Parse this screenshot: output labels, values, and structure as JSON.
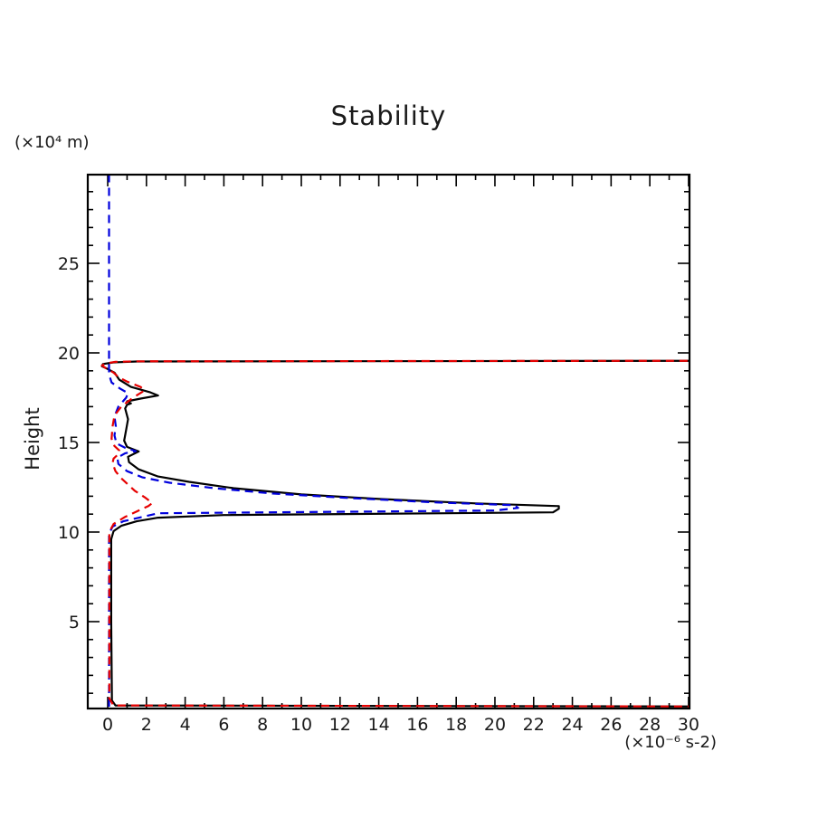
{
  "title": "Stability",
  "axes": {
    "y_unit_label": "(×10⁴ m)",
    "y_title": "Height",
    "x_unit_label": "(×10⁻⁶ s-2)"
  },
  "chart_data": {
    "type": "line",
    "title": "Stability",
    "xlabel": "(×10⁻⁶ s-2)",
    "ylabel": "Height",
    "ylabel_unit": "(×10⁴ m)",
    "orientation": "vertical-profile: x = stability value, y = height",
    "grid": false,
    "legend": "none",
    "x_range": [
      -1.03,
      30.05
    ],
    "y_range": [
      0.15,
      29.95
    ],
    "x_major_ticks": [
      0,
      2,
      4,
      6,
      8,
      10,
      12,
      14,
      16,
      18,
      20,
      22,
      24,
      26,
      28,
      30
    ],
    "x_minor_ticks": [
      1,
      3,
      5,
      7,
      9,
      11,
      13,
      15,
      17,
      19,
      21,
      23,
      25,
      27,
      29
    ],
    "y_major_ticks": [
      5,
      10,
      15,
      20,
      25
    ],
    "y_minor_ticks": [
      1,
      2,
      3,
      4,
      6,
      7,
      8,
      9,
      11,
      12,
      13,
      14,
      16,
      17,
      18,
      19,
      21,
      22,
      23,
      24,
      26,
      27,
      28,
      29
    ],
    "frame_color": "#000000",
    "notes": "Three stability profiles vs height. Values >30 run off-scale right: near-surface spike at h≈0.3 (black, red), sharp layer spike to ≈23 at h≈11.4 (black, blue), and off-scale layer at h≈19.55 (black, red). Blue stays near 0 above h≈19.",
    "series": [
      {
        "name": "black-solid-profile",
        "color": "#000000",
        "style": "solid",
        "points": [
          [
            31,
            0.18
          ],
          [
            31,
            0.26
          ],
          [
            0.4,
            0.32
          ],
          [
            0.22,
            0.6
          ],
          [
            0.18,
            5.0
          ],
          [
            0.18,
            9.6
          ],
          [
            0.3,
            10.05
          ],
          [
            0.7,
            10.35
          ],
          [
            1.5,
            10.6
          ],
          [
            2.6,
            10.8
          ],
          [
            6.0,
            10.95
          ],
          [
            23.0,
            11.1
          ],
          [
            23.3,
            11.3
          ],
          [
            23.3,
            11.45
          ],
          [
            19.0,
            11.6
          ],
          [
            14.0,
            11.85
          ],
          [
            10.0,
            12.1
          ],
          [
            6.5,
            12.45
          ],
          [
            4.2,
            12.8
          ],
          [
            2.6,
            13.1
          ],
          [
            1.6,
            13.5
          ],
          [
            1.1,
            13.9
          ],
          [
            1.05,
            14.2
          ],
          [
            1.6,
            14.5
          ],
          [
            1.0,
            14.75
          ],
          [
            0.85,
            15.1
          ],
          [
            0.95,
            15.7
          ],
          [
            1.05,
            16.3
          ],
          [
            0.9,
            16.9
          ],
          [
            1.0,
            17.1
          ],
          [
            1.2,
            17.18
          ],
          [
            1.0,
            17.3
          ],
          [
            1.7,
            17.45
          ],
          [
            2.6,
            17.62
          ],
          [
            2.2,
            17.8
          ],
          [
            1.2,
            18.1
          ],
          [
            0.6,
            18.5
          ],
          [
            0.35,
            18.9
          ],
          [
            0.0,
            19.1
          ],
          [
            -0.3,
            19.25
          ],
          [
            -0.25,
            19.38
          ],
          [
            0.3,
            19.47
          ],
          [
            1.5,
            19.52
          ],
          [
            31,
            19.56
          ]
        ]
      },
      {
        "name": "blue-dashed-profile",
        "color": "#0000dd",
        "style": "dashed",
        "points": [
          [
            0.07,
            0.25
          ],
          [
            0.07,
            9.9
          ],
          [
            0.25,
            10.3
          ],
          [
            0.8,
            10.6
          ],
          [
            2.0,
            10.9
          ],
          [
            2.6,
            11.05
          ],
          [
            20.0,
            11.2
          ],
          [
            21.2,
            11.35
          ],
          [
            21.0,
            11.5
          ],
          [
            17.0,
            11.65
          ],
          [
            12.5,
            11.9
          ],
          [
            8.5,
            12.15
          ],
          [
            5.5,
            12.45
          ],
          [
            3.2,
            12.75
          ],
          [
            1.8,
            13.05
          ],
          [
            1.0,
            13.4
          ],
          [
            0.55,
            13.8
          ],
          [
            0.5,
            14.15
          ],
          [
            0.9,
            14.4
          ],
          [
            1.45,
            14.52
          ],
          [
            0.9,
            14.7
          ],
          [
            0.45,
            14.95
          ],
          [
            0.35,
            15.4
          ],
          [
            0.42,
            15.9
          ],
          [
            0.35,
            16.45
          ],
          [
            0.55,
            17.0
          ],
          [
            0.95,
            17.5
          ],
          [
            1.05,
            17.75
          ],
          [
            0.65,
            18.0
          ],
          [
            0.2,
            18.35
          ],
          [
            0.07,
            18.8
          ],
          [
            0.07,
            29.93
          ]
        ]
      },
      {
        "name": "red-dashed-profile",
        "color": "#e60000",
        "style": "dashed",
        "points": [
          [
            31,
            0.18
          ],
          [
            31,
            0.26
          ],
          [
            0.3,
            0.32
          ],
          [
            0.08,
            0.7
          ],
          [
            0.08,
            10.0
          ],
          [
            0.3,
            10.45
          ],
          [
            0.9,
            10.85
          ],
          [
            1.5,
            11.15
          ],
          [
            2.1,
            11.45
          ],
          [
            2.3,
            11.62
          ],
          [
            1.9,
            11.95
          ],
          [
            1.4,
            12.3
          ],
          [
            1.05,
            12.65
          ],
          [
            0.7,
            13.0
          ],
          [
            0.4,
            13.4
          ],
          [
            0.25,
            13.85
          ],
          [
            0.3,
            14.1
          ],
          [
            0.55,
            14.35
          ],
          [
            0.6,
            14.55
          ],
          [
            0.35,
            14.8
          ],
          [
            0.2,
            15.2
          ],
          [
            0.25,
            15.9
          ],
          [
            0.35,
            16.5
          ],
          [
            0.7,
            17.0
          ],
          [
            1.3,
            17.5
          ],
          [
            1.9,
            17.9
          ],
          [
            1.7,
            18.1
          ],
          [
            1.0,
            18.4
          ],
          [
            0.55,
            18.65
          ],
          [
            0.3,
            18.9
          ],
          [
            -0.1,
            19.15
          ],
          [
            -0.3,
            19.3
          ],
          [
            -0.1,
            19.42
          ],
          [
            0.4,
            19.5
          ],
          [
            1.5,
            19.53
          ],
          [
            31,
            19.56
          ]
        ]
      }
    ]
  }
}
